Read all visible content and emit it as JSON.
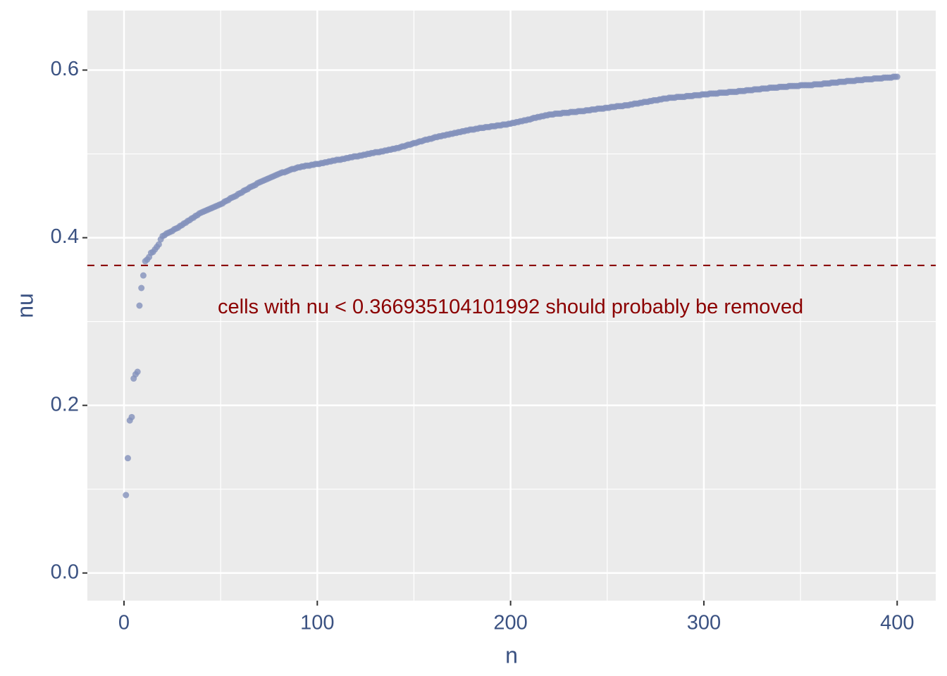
{
  "chart_data": {
    "type": "scatter",
    "x_label": "n",
    "y_label": "nu",
    "xlim": [
      -18.95,
      419.95
    ],
    "ylim": [
      -0.033,
      0.671
    ],
    "xticks": [
      0,
      100,
      200,
      300,
      400
    ],
    "yticks": [
      {
        "value": 0,
        "label": "0.0"
      },
      {
        "value": 0.2,
        "label": "0.2"
      },
      {
        "value": 0.4,
        "label": "0.4"
      },
      {
        "value": 0.6,
        "label": "0.6"
      }
    ],
    "x_minor_grid": [
      50,
      150,
      250,
      350
    ],
    "y_minor_grid": [
      0.1,
      0.3,
      0.5
    ],
    "grid": true,
    "color": "#8391bb",
    "hline": {
      "value": 0.366935104101992,
      "color": "#8b0000"
    },
    "annotation": {
      "text": "cells with nu < 0.366935104101992 should probably be removed",
      "x": 200,
      "y": 0.316,
      "color": "#8b0000"
    },
    "x": [
      1,
      2,
      3,
      4,
      5,
      6,
      7,
      8,
      9,
      10,
      11,
      12,
      13,
      14,
      15,
      16,
      17,
      18,
      19,
      20,
      21,
      22,
      23,
      24,
      25,
      26,
      27,
      28,
      29,
      30,
      31,
      32,
      33,
      34,
      35,
      36,
      37,
      38,
      39,
      40,
      41,
      42,
      43,
      44,
      45,
      46,
      47,
      48,
      49,
      50,
      51,
      52,
      53,
      54,
      55,
      56,
      57,
      58,
      59,
      60,
      61,
      62,
      63,
      64,
      65,
      66,
      67,
      68,
      69,
      70,
      71,
      72,
      73,
      74,
      75,
      76,
      77,
      78,
      79,
      80,
      81,
      82,
      83,
      84,
      85,
      86,
      87,
      88,
      89,
      90,
      91,
      92,
      93,
      94,
      95,
      96,
      97,
      98,
      99,
      100,
      101,
      102,
      103,
      104,
      105,
      106,
      107,
      108,
      109,
      110,
      111,
      112,
      113,
      114,
      115,
      116,
      117,
      118,
      119,
      120,
      121,
      122,
      123,
      124,
      125,
      126,
      127,
      128,
      129,
      130,
      131,
      132,
      133,
      134,
      135,
      136,
      137,
      138,
      139,
      140,
      141,
      142,
      143,
      144,
      145,
      146,
      147,
      148,
      149,
      150,
      151,
      152,
      153,
      154,
      155,
      156,
      157,
      158,
      159,
      160,
      161,
      162,
      163,
      164,
      165,
      166,
      167,
      168,
      169,
      170,
      171,
      172,
      173,
      174,
      175,
      176,
      177,
      178,
      179,
      180,
      181,
      182,
      183,
      184,
      185,
      186,
      187,
      188,
      189,
      190,
      191,
      192,
      193,
      194,
      195,
      196,
      197,
      198,
      199,
      200,
      201,
      202,
      203,
      204,
      205,
      206,
      207,
      208,
      209,
      210,
      211,
      212,
      213,
      214,
      215,
      216,
      217,
      218,
      219,
      220,
      221,
      222,
      223,
      224,
      225,
      226,
      227,
      228,
      229,
      230,
      231,
      232,
      233,
      234,
      235,
      236,
      237,
      238,
      239,
      240,
      241,
      242,
      243,
      244,
      245,
      246,
      247,
      248,
      249,
      250,
      251,
      252,
      253,
      254,
      255,
      256,
      257,
      258,
      259,
      260,
      261,
      262,
      263,
      264,
      265,
      266,
      267,
      268,
      269,
      270,
      271,
      272,
      273,
      274,
      275,
      276,
      277,
      278,
      279,
      280,
      281,
      282,
      283,
      284,
      285,
      286,
      287,
      288,
      289,
      290,
      291,
      292,
      293,
      294,
      295,
      296,
      297,
      298,
      299,
      300,
      301,
      302,
      303,
      304,
      305,
      306,
      307,
      308,
      309,
      310,
      311,
      312,
      313,
      314,
      315,
      316,
      317,
      318,
      319,
      320,
      321,
      322,
      323,
      324,
      325,
      326,
      327,
      328,
      329,
      330,
      331,
      332,
      333,
      334,
      335,
      336,
      337,
      338,
      339,
      340,
      341,
      342,
      343,
      344,
      345,
      346,
      347,
      348,
      349,
      350,
      351,
      352,
      353,
      354,
      355,
      356,
      357,
      358,
      359,
      360,
      361,
      362,
      363,
      364,
      365,
      366,
      367,
      368,
      369,
      370,
      371,
      372,
      373,
      374,
      375,
      376,
      377,
      378,
      379,
      380,
      381,
      382,
      383,
      384,
      385,
      386,
      387,
      388,
      389,
      390,
      391,
      392,
      393,
      394,
      395,
      396,
      397,
      398,
      399,
      400
    ],
    "values": [
      0.093,
      0.137,
      0.182,
      0.186,
      0.232,
      0.237,
      0.24,
      0.319,
      0.34,
      0.355,
      0.372,
      0.374,
      0.377,
      0.382,
      0.383,
      0.386,
      0.389,
      0.392,
      0.398,
      0.402,
      0.403,
      0.405,
      0.406,
      0.407,
      0.408,
      0.41,
      0.411,
      0.412,
      0.414,
      0.415,
      0.417,
      0.418,
      0.42,
      0.421,
      0.423,
      0.424,
      0.426,
      0.427,
      0.429,
      0.43,
      0.431,
      0.432,
      0.433,
      0.434,
      0.435,
      0.436,
      0.437,
      0.438,
      0.439,
      0.44,
      0.441,
      0.443,
      0.444,
      0.445,
      0.447,
      0.448,
      0.449,
      0.45,
      0.452,
      0.453,
      0.454,
      0.456,
      0.457,
      0.458,
      0.46,
      0.461,
      0.462,
      0.463,
      0.465,
      0.466,
      0.467,
      0.468,
      0.469,
      0.47,
      0.471,
      0.472,
      0.473,
      0.474,
      0.475,
      0.476,
      0.477,
      0.478,
      0.478,
      0.479,
      0.48,
      0.481,
      0.482,
      0.482,
      0.483,
      0.484,
      0.484,
      0.485,
      0.485,
      0.486,
      0.486,
      0.486,
      0.487,
      0.487,
      0.488,
      0.488,
      0.488,
      0.489,
      0.489,
      0.49,
      0.49,
      0.491,
      0.491,
      0.492,
      0.492,
      0.493,
      0.493,
      0.493,
      0.494,
      0.494,
      0.495,
      0.495,
      0.496,
      0.496,
      0.497,
      0.497,
      0.497,
      0.498,
      0.498,
      0.499,
      0.499,
      0.5,
      0.5,
      0.501,
      0.501,
      0.502,
      0.502,
      0.502,
      0.503,
      0.503,
      0.504,
      0.504,
      0.505,
      0.505,
      0.506,
      0.506,
      0.507,
      0.507,
      0.508,
      0.509,
      0.509,
      0.51,
      0.511,
      0.511,
      0.512,
      0.513,
      0.513,
      0.514,
      0.515,
      0.515,
      0.516,
      0.517,
      0.517,
      0.518,
      0.518,
      0.519,
      0.52,
      0.52,
      0.521,
      0.521,
      0.522,
      0.522,
      0.523,
      0.523,
      0.524,
      0.524,
      0.525,
      0.525,
      0.526,
      0.526,
      0.527,
      0.527,
      0.528,
      0.528,
      0.529,
      0.529,
      0.529,
      0.53,
      0.53,
      0.531,
      0.531,
      0.531,
      0.532,
      0.532,
      0.532,
      0.533,
      0.533,
      0.533,
      0.534,
      0.534,
      0.534,
      0.535,
      0.535,
      0.535,
      0.536,
      0.536,
      0.537,
      0.537,
      0.538,
      0.538,
      0.539,
      0.539,
      0.54,
      0.54,
      0.541,
      0.541,
      0.542,
      0.543,
      0.543,
      0.544,
      0.544,
      0.545,
      0.545,
      0.546,
      0.546,
      0.547,
      0.547,
      0.547,
      0.548,
      0.548,
      0.548,
      0.548,
      0.549,
      0.549,
      0.549,
      0.549,
      0.55,
      0.55,
      0.55,
      0.55,
      0.551,
      0.551,
      0.551,
      0.551,
      0.552,
      0.552,
      0.552,
      0.553,
      0.553,
      0.553,
      0.554,
      0.554,
      0.554,
      0.554,
      0.555,
      0.555,
      0.555,
      0.556,
      0.556,
      0.556,
      0.557,
      0.557,
      0.557,
      0.557,
      0.558,
      0.558,
      0.558,
      0.559,
      0.559,
      0.56,
      0.56,
      0.56,
      0.561,
      0.561,
      0.562,
      0.562,
      0.562,
      0.563,
      0.563,
      0.564,
      0.564,
      0.564,
      0.565,
      0.565,
      0.566,
      0.566,
      0.566,
      0.567,
      0.567,
      0.567,
      0.567,
      0.568,
      0.568,
      0.568,
      0.568,
      0.568,
      0.569,
      0.569,
      0.569,
      0.569,
      0.57,
      0.57,
      0.57,
      0.57,
      0.571,
      0.571,
      0.571,
      0.571,
      0.572,
      0.572,
      0.572,
      0.572,
      0.572,
      0.573,
      0.573,
      0.573,
      0.573,
      0.573,
      0.574,
      0.574,
      0.574,
      0.574,
      0.574,
      0.575,
      0.575,
      0.575,
      0.575,
      0.576,
      0.576,
      0.576,
      0.576,
      0.577,
      0.577,
      0.577,
      0.577,
      0.578,
      0.578,
      0.578,
      0.578,
      0.579,
      0.579,
      0.579,
      0.579,
      0.579,
      0.58,
      0.58,
      0.58,
      0.58,
      0.58,
      0.581,
      0.581,
      0.581,
      0.581,
      0.581,
      0.581,
      0.582,
      0.582,
      0.582,
      0.582,
      0.582,
      0.582,
      0.582,
      0.583,
      0.583,
      0.583,
      0.583,
      0.583,
      0.584,
      0.584,
      0.584,
      0.584,
      0.585,
      0.585,
      0.585,
      0.585,
      0.586,
      0.586,
      0.586,
      0.586,
      0.587,
      0.587,
      0.587,
      0.587,
      0.587,
      0.588,
      0.588,
      0.588,
      0.588,
      0.589,
      0.589,
      0.589,
      0.589,
      0.589,
      0.59,
      0.59,
      0.59,
      0.59,
      0.59,
      0.591,
      0.591,
      0.591,
      0.591,
      0.591,
      0.592,
      0.592,
      0.592
    ]
  }
}
